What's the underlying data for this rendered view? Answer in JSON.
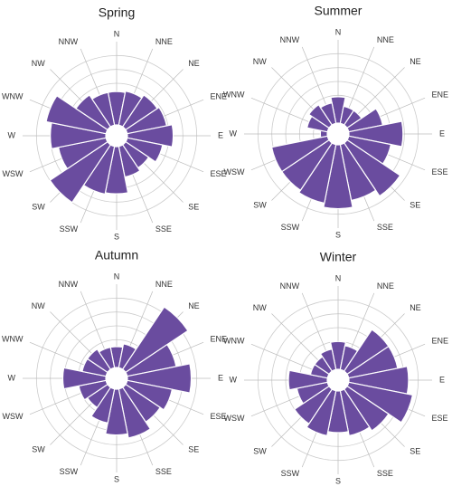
{
  "chart_data": [
    {
      "type": "polar_bar",
      "title": "Spring",
      "color": "#6a4c9f",
      "rlim": [
        0,
        120
      ],
      "rgrid": [
        20,
        40,
        60,
        80,
        100
      ],
      "categories": [
        "N",
        "NNE",
        "NE",
        "ENE",
        "E",
        "ESE",
        "SE",
        "SSE",
        "S",
        "SSW",
        "SW",
        "WSW",
        "W",
        "WNW",
        "NW",
        "NNW"
      ],
      "values": [
        48,
        50,
        55,
        58,
        66,
        52,
        40,
        45,
        68,
        70,
        100,
        70,
        80,
        88,
        55,
        48
      ]
    },
    {
      "type": "polar_bar",
      "title": "Summer",
      "color": "#6a4c9f",
      "rlim": [
        0,
        120
      ],
      "rgrid": [
        20,
        40,
        60,
        80,
        100
      ],
      "categories": [
        "N",
        "NNE",
        "NE",
        "ENE",
        "E",
        "ESE",
        "SE",
        "SSE",
        "S",
        "SSW",
        "SW",
        "WSW",
        "W",
        "WNW",
        "NW",
        "NNW"
      ],
      "values": [
        38,
        25,
        25,
        50,
        78,
        62,
        92,
        82,
        92,
        86,
        82,
        82,
        10,
        30,
        35,
        30
      ]
    },
    {
      "type": "polar_bar",
      "title": "Autumn",
      "color": "#6a4c9f",
      "rlim": [
        0,
        120
      ],
      "rgrid": [
        20,
        40,
        60,
        80,
        100
      ],
      "categories": [
        "N",
        "NNE",
        "NE",
        "ENE",
        "E",
        "ESE",
        "SE",
        "SSE",
        "S",
        "SSW",
        "SW",
        "WSW",
        "W",
        "WNW",
        "NW",
        "NNW"
      ],
      "values": [
        30,
        35,
        108,
        72,
        92,
        66,
        60,
        72,
        66,
        50,
        35,
        40,
        62,
        35,
        35,
        30
      ]
    },
    {
      "type": "polar_bar",
      "title": "Winter",
      "color": "#6a4c9f",
      "rlim": [
        0,
        120
      ],
      "rgrid": [
        20,
        40,
        60,
        80,
        100
      ],
      "categories": [
        "N",
        "NNE",
        "NE",
        "ENE",
        "E",
        "ESE",
        "SE",
        "SSE",
        "S",
        "SSW",
        "SW",
        "WSW",
        "W",
        "WNW",
        "NW",
        "NNW"
      ],
      "values": [
        40,
        35,
        72,
        72,
        86,
        94,
        72,
        66,
        60,
        66,
        60,
        45,
        56,
        25,
        25,
        30
      ]
    }
  ]
}
